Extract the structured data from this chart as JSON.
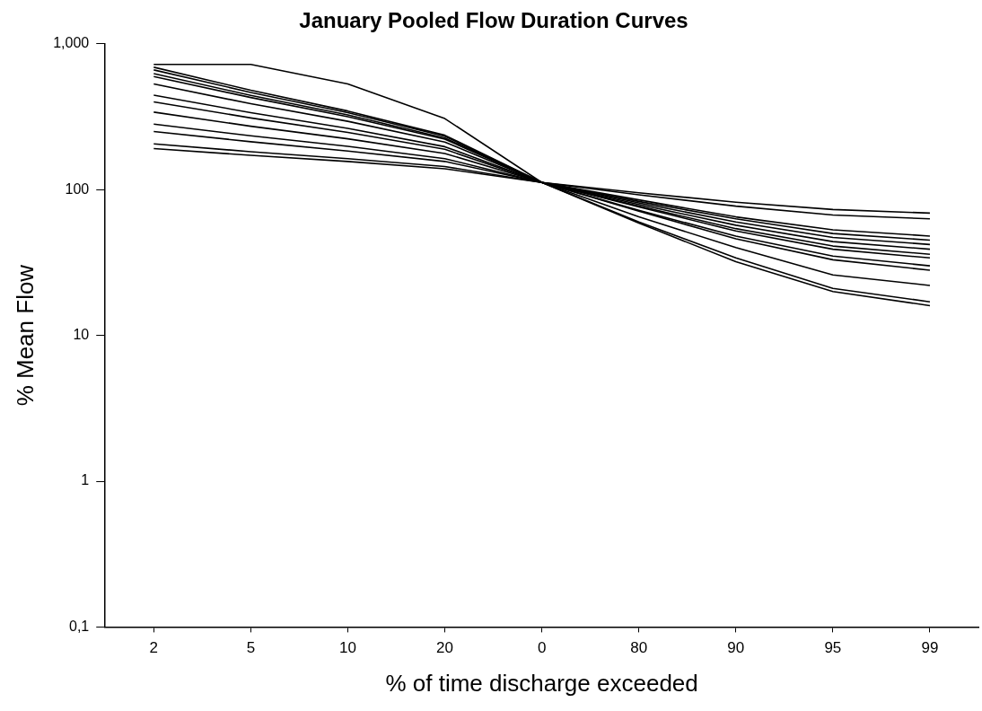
{
  "chart_data": {
    "type": "line",
    "title": "January Pooled Flow Duration Curves",
    "xlabel": "% of time discharge exceeded",
    "ylabel": "% Mean Flow",
    "categories": [
      "2",
      "5",
      "10",
      "20",
      "0",
      "80",
      "90",
      "95",
      "99"
    ],
    "ylim": [
      0.1,
      1000
    ],
    "yticks": [
      {
        "value": 0.1,
        "label": "0,1"
      },
      1,
      10,
      100,
      {
        "value": 1000,
        "label": "1,000"
      }
    ],
    "log": "y",
    "marker": "none",
    "line_style": "solid",
    "series": [
      {
        "color": "#000000",
        "values": [
          723,
          723,
          530,
          307,
          112,
          59,
          32,
          20,
          16
        ]
      },
      {
        "color": "#000000",
        "values": [
          691,
          480,
          346,
          236,
          112,
          60,
          34,
          21,
          17
        ]
      },
      {
        "color": "#000000",
        "values": [
          662,
          464,
          337,
          232,
          112,
          65,
          40,
          26,
          22
        ]
      },
      {
        "color": "#000000",
        "values": [
          624,
          443,
          325,
          226,
          112,
          71,
          46,
          33,
          28
        ]
      },
      {
        "color": "#000000",
        "values": [
          597,
          428,
          316,
          222,
          112,
          72,
          48,
          35,
          30
        ]
      },
      {
        "color": "#000000",
        "values": [
          530,
          388,
          294,
          212,
          112,
          76,
          52,
          39,
          34
        ]
      },
      {
        "color": "#000000",
        "values": [
          444,
          337,
          263,
          197,
          112,
          77,
          54,
          41,
          36
        ]
      },
      {
        "color": "#000000",
        "values": [
          400,
          310,
          247,
          189,
          112,
          79,
          57,
          44,
          39
        ]
      },
      {
        "color": "#000000",
        "values": [
          340,
          272,
          223,
          177,
          112,
          81,
          60,
          47,
          42
        ]
      },
      {
        "color": "#000000",
        "values": [
          281,
          234,
          198,
          163,
          112,
          83,
          63,
          50,
          45
        ]
      },
      {
        "color": "#000000",
        "values": [
          250,
          213,
          184,
          156,
          112,
          85,
          65,
          53,
          48
        ]
      },
      {
        "color": "#000000",
        "values": [
          206,
          182,
          163,
          144,
          112,
          92,
          77,
          67,
          63
        ]
      },
      {
        "color": "#000000",
        "values": [
          191,
          172,
          156,
          139,
          112,
          95,
          82,
          73,
          69
        ]
      }
    ]
  }
}
